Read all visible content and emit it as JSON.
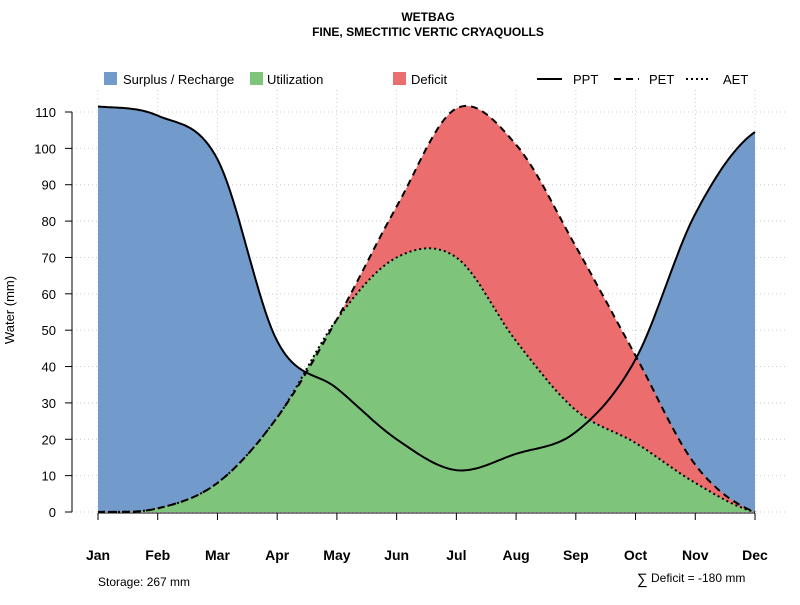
{
  "chart_data": {
    "type": "area",
    "title": "WETBAG",
    "subtitle": "FINE, SMECTITIC VERTIC CRYAQUOLLS",
    "xlabel": "",
    "ylabel": "Water (mm)",
    "ylim": [
      0,
      110
    ],
    "yticks": [
      0,
      10,
      20,
      30,
      40,
      50,
      60,
      70,
      80,
      90,
      100,
      110
    ],
    "grid": true,
    "categories": [
      "Jan",
      "Feb",
      "Mar",
      "Apr",
      "May",
      "Jun",
      "Jul",
      "Aug",
      "Sep",
      "Oct",
      "Nov",
      "Dec"
    ],
    "series": [
      {
        "name": "PPT",
        "style": "solid",
        "values": [
          111.5,
          109,
          97,
          47,
          34,
          20,
          11.5,
          16,
          22,
          42,
          82,
          104.5
        ]
      },
      {
        "name": "PET",
        "style": "dashed",
        "values": [
          0,
          1,
          8,
          26,
          53,
          84,
          111,
          101,
          73,
          43,
          13,
          0
        ]
      },
      {
        "name": "AET",
        "style": "dotted",
        "values": [
          0,
          1,
          8,
          26,
          53,
          70,
          70,
          47,
          28,
          19,
          8,
          0
        ]
      }
    ],
    "areas": [
      {
        "name": "Surplus / Recharge",
        "color": "#729ACA"
      },
      {
        "name": "Utilization",
        "color": "#7FC47B"
      },
      {
        "name": "Deficit",
        "color": "#EC6D6D"
      }
    ],
    "legend_position": "top",
    "annotations": {
      "storage": "Storage: 267 mm",
      "deficit_symbol": "∑",
      "deficit": "Deficit = -180 mm"
    }
  }
}
